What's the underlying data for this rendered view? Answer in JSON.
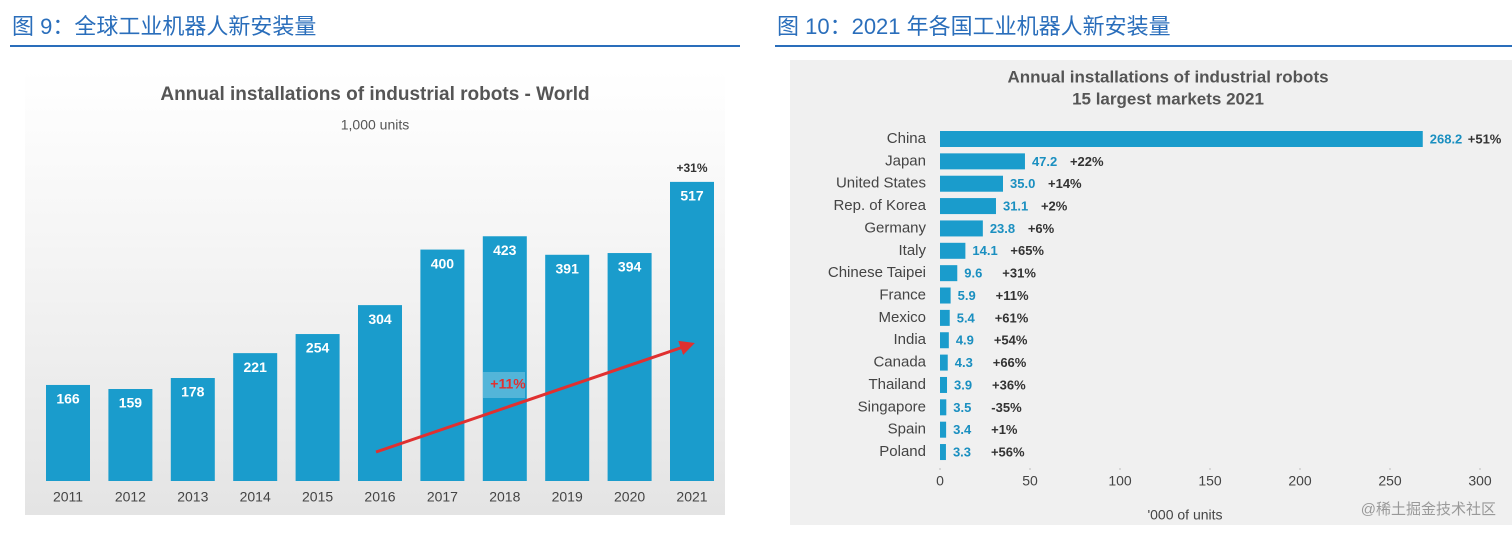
{
  "chart_data": [
    {
      "type": "bar",
      "orientation": "vertical",
      "caption": "图 9：全球工业机器人新安装量",
      "title": "Annual installations of industrial robots - World",
      "subtitle": "1,000 units",
      "categories": [
        "2011",
        "2012",
        "2013",
        "2014",
        "2015",
        "2016",
        "2017",
        "2018",
        "2019",
        "2020",
        "2021"
      ],
      "values": [
        166,
        159,
        178,
        221,
        254,
        304,
        400,
        423,
        391,
        394,
        517
      ],
      "color": "#1a9ccc",
      "ylim": [
        0,
        560
      ],
      "annotations": [
        "+31%",
        "+11%"
      ]
    },
    {
      "type": "bar",
      "orientation": "horizontal",
      "caption": "图 10：2021 年各国工业机器人新安装量",
      "title": "Annual installations of industrial robots",
      "subtitle": "15 largest markets 2021",
      "categories": [
        "China",
        "Japan",
        "United States",
        "Rep. of Korea",
        "Germany",
        "Italy",
        "Chinese Taipei",
        "France",
        "Mexico",
        "India",
        "Canada",
        "Thailand",
        "Singapore",
        "Spain",
        "Poland"
      ],
      "values": [
        268.2,
        47.2,
        35.0,
        31.1,
        23.8,
        14.1,
        9.6,
        5.9,
        5.4,
        4.9,
        4.3,
        3.9,
        3.5,
        3.4,
        3.3
      ],
      "value_labels": [
        "268.2",
        "47.2",
        "35.0",
        "31.1",
        "23.8",
        "14.1",
        "9.6",
        "5.9",
        "5.4",
        "4.9",
        "4.3",
        "3.9",
        "3.5",
        "3.4",
        "3.3"
      ],
      "change_labels": [
        "+51%",
        "+22%",
        "+14%",
        "+2%",
        "+6%",
        "+65%",
        "+31%",
        "+11%",
        "+61%",
        "+54%",
        "+66%",
        "+36%",
        "-35%",
        "+1%",
        "+56%"
      ],
      "color": "#1a9ccc",
      "xlim": [
        0,
        300
      ],
      "xticks": [
        0,
        50,
        100,
        150,
        200,
        250,
        300
      ],
      "xlabel": "'000 of units",
      "watermark": "@稀土掘金技术社区"
    }
  ]
}
